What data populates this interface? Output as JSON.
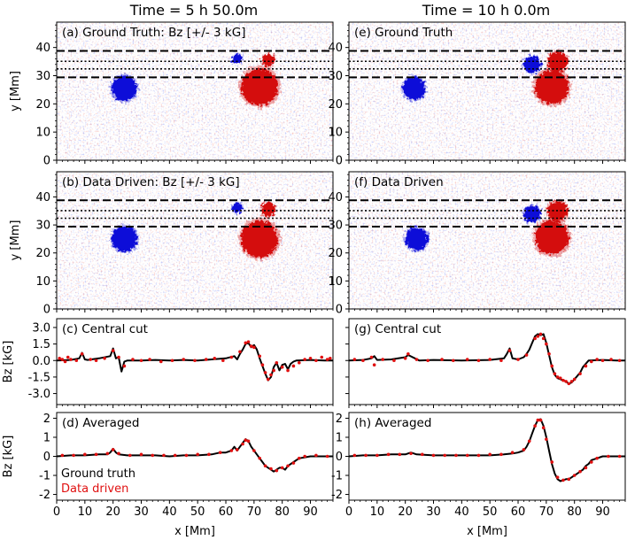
{
  "figure": {
    "left_title": "Time = 5 h 50.0m",
    "right_title": "Time = 10 h 0.0m"
  },
  "chart_data": [
    {
      "type": "heatmap",
      "panel": "a",
      "label": "(a) Ground Truth: Bz [+/- 3 kG]",
      "ylabel": "y [Mm]",
      "xlim": [
        0,
        98
      ],
      "ylim": [
        0,
        49
      ],
      "xticks": [
        0,
        10,
        20,
        30,
        40,
        50,
        60,
        70,
        80,
        90
      ],
      "yticks": [
        0,
        10,
        20,
        30,
        40
      ],
      "color_range_kG": [
        -3,
        3
      ],
      "dashed_lines_y": [
        29.4,
        38.8
      ],
      "dotted_lines_y": [
        32.4,
        35.1
      ],
      "spots": [
        {
          "polarity": "negative",
          "x": 24,
          "y": 25.5,
          "size": 4.5
        },
        {
          "polarity": "positive",
          "x": 72,
          "y": 26,
          "size": 6.5
        },
        {
          "polarity": "negative",
          "x": 64,
          "y": 36,
          "size": 1.8
        },
        {
          "polarity": "positive",
          "x": 75,
          "y": 35.5,
          "size": 2.2
        }
      ]
    },
    {
      "type": "heatmap",
      "panel": "e",
      "label": "(e) Ground Truth",
      "xlim": [
        0,
        98
      ],
      "ylim": [
        0,
        49
      ],
      "xticks": [
        0,
        10,
        20,
        30,
        40,
        50,
        60,
        70,
        80,
        90
      ],
      "yticks": [
        0,
        10,
        20,
        30,
        40
      ],
      "dashed_lines_y": [
        29.4,
        38.8
      ],
      "dotted_lines_y": [
        32.4,
        35.1
      ],
      "spots": [
        {
          "polarity": "negative",
          "x": 23,
          "y": 25.5,
          "size": 4.0
        },
        {
          "polarity": "positive",
          "x": 72,
          "y": 26,
          "size": 6.0
        },
        {
          "polarity": "negative",
          "x": 65,
          "y": 34,
          "size": 3.0
        },
        {
          "polarity": "positive",
          "x": 74,
          "y": 35,
          "size": 3.5
        }
      ]
    },
    {
      "type": "heatmap",
      "panel": "b",
      "label": "(b) Data Driven: Bz [+/- 3 kG]",
      "ylabel": "y [Mm]",
      "xlim": [
        0,
        98
      ],
      "ylim": [
        0,
        49
      ],
      "xticks": [
        0,
        10,
        20,
        30,
        40,
        50,
        60,
        70,
        80,
        90
      ],
      "yticks": [
        0,
        10,
        20,
        30,
        40
      ],
      "dashed_lines_y": [
        29.4,
        38.8
      ],
      "dotted_lines_y": [
        32.4,
        35.1
      ],
      "spots": [
        {
          "polarity": "negative",
          "x": 24,
          "y": 25,
          "size": 4.5
        },
        {
          "polarity": "positive",
          "x": 72,
          "y": 25,
          "size": 6.5
        },
        {
          "polarity": "negative",
          "x": 64,
          "y": 36,
          "size": 1.8
        },
        {
          "polarity": "positive",
          "x": 75,
          "y": 35.5,
          "size": 2.5
        }
      ]
    },
    {
      "type": "heatmap",
      "panel": "f",
      "label": "(f) Data Driven",
      "xlim": [
        0,
        98
      ],
      "ylim": [
        0,
        49
      ],
      "xticks": [
        0,
        10,
        20,
        30,
        40,
        50,
        60,
        70,
        80,
        90
      ],
      "yticks": [
        0,
        10,
        20,
        30,
        40
      ],
      "dashed_lines_y": [
        29.4,
        38.8
      ],
      "dotted_lines_y": [
        32.4,
        35.1
      ],
      "spots": [
        {
          "polarity": "negative",
          "x": 24,
          "y": 25,
          "size": 4.0
        },
        {
          "polarity": "positive",
          "x": 72,
          "y": 25.5,
          "size": 6.0
        },
        {
          "polarity": "negative",
          "x": 65,
          "y": 34,
          "size": 3.0
        },
        {
          "polarity": "positive",
          "x": 74,
          "y": 35,
          "size": 3.5
        }
      ]
    },
    {
      "type": "line",
      "panel": "c",
      "label": "(c) Central cut",
      "ylabel": "Bz [kG]",
      "xlim": [
        0,
        98
      ],
      "ylim": [
        -4.0,
        3.8
      ],
      "yticks": [
        3.0,
        1.5,
        0.0,
        -1.5,
        -3.0
      ],
      "xticks": [
        0,
        10,
        20,
        30,
        40,
        50,
        60,
        70,
        80,
        90
      ],
      "series": [
        {
          "name": "Ground truth",
          "color": "#000000",
          "style": "line",
          "x": [
            0,
            5,
            8,
            9,
            10,
            11,
            15,
            19,
            20,
            21,
            22,
            23,
            24,
            25,
            30,
            35,
            40,
            45,
            50,
            55,
            60,
            63,
            64,
            65,
            66,
            67,
            68,
            69,
            70,
            71,
            72,
            73,
            74,
            75,
            76,
            77,
            78,
            79,
            80,
            81,
            82,
            83,
            84,
            85,
            90,
            95,
            98
          ],
          "y": [
            0.0,
            0.05,
            0.2,
            0.7,
            0.1,
            0.05,
            0.2,
            0.4,
            1.1,
            0.2,
            0.3,
            -1.0,
            -0.1,
            0.0,
            0.0,
            0.05,
            0.0,
            0.05,
            0.0,
            0.1,
            0.2,
            0.4,
            0.1,
            0.6,
            1.0,
            1.5,
            1.6,
            1.2,
            1.4,
            1.0,
            0.2,
            -0.5,
            -1.2,
            -1.8,
            -1.5,
            -0.6,
            -0.2,
            -0.9,
            -0.4,
            -0.3,
            -0.8,
            -0.3,
            -0.1,
            0.0,
            0.05,
            0.0,
            0.0
          ]
        },
        {
          "name": "Data driven",
          "color": "#e01010",
          "style": "scatter",
          "x": [
            1,
            2,
            3,
            4,
            5,
            7,
            9,
            12,
            14,
            17,
            20,
            22,
            24,
            27,
            30,
            33,
            37,
            41,
            45,
            49,
            53,
            56,
            59,
            62,
            65,
            67,
            68,
            69,
            70,
            72,
            73,
            74,
            75,
            76,
            77,
            78,
            80,
            82,
            84,
            86,
            88,
            90,
            92,
            94,
            96,
            97
          ],
          "y": [
            0.2,
            0.1,
            -0.1,
            0.3,
            0.1,
            0.0,
            0.6,
            0.1,
            0.0,
            0.2,
            0.9,
            0.3,
            -0.5,
            0.1,
            0.0,
            0.1,
            -0.1,
            0.0,
            0.1,
            0.0,
            0.1,
            0.2,
            0.0,
            0.3,
            0.8,
            1.6,
            1.7,
            1.3,
            1.2,
            0.4,
            -0.4,
            -1.1,
            -1.7,
            -1.3,
            -0.9,
            -0.2,
            -0.6,
            -0.9,
            -0.5,
            -0.2,
            0.1,
            0.2,
            0.0,
            0.3,
            0.1,
            0.2
          ]
        }
      ]
    },
    {
      "type": "line",
      "panel": "g",
      "label": "(g) Central cut",
      "xlim": [
        0,
        98
      ],
      "ylim": [
        -4.0,
        3.8
      ],
      "yticks": [
        3.0,
        1.5,
        0.0,
        -1.5,
        -3.0
      ],
      "xticks": [
        0,
        10,
        20,
        30,
        40,
        50,
        60,
        70,
        80,
        90
      ],
      "series": [
        {
          "name": "Ground truth",
          "color": "#000000",
          "style": "line",
          "x": [
            0,
            5,
            8,
            9,
            10,
            15,
            20,
            21,
            25,
            30,
            40,
            50,
            55,
            56,
            57,
            58,
            60,
            62,
            63,
            64,
            65,
            66,
            67,
            68,
            69,
            70,
            71,
            72,
            73,
            74,
            75,
            76,
            77,
            78,
            79,
            80,
            81,
            82,
            83,
            84,
            85,
            90,
            95,
            98
          ],
          "y": [
            0.0,
            0.05,
            0.2,
            0.4,
            0.05,
            0.1,
            0.3,
            0.5,
            0.0,
            0.05,
            0.0,
            0.05,
            0.2,
            0.6,
            1.1,
            0.2,
            0.1,
            0.3,
            0.6,
            1.0,
            1.6,
            2.2,
            2.4,
            2.3,
            2.4,
            1.6,
            0.5,
            -0.6,
            -1.3,
            -1.6,
            -1.7,
            -1.8,
            -1.9,
            -2.1,
            -2.0,
            -1.7,
            -1.4,
            -1.1,
            -0.6,
            -0.3,
            0.0,
            0.05,
            0.0,
            0.0
          ]
        },
        {
          "name": "Data driven",
          "color": "#e01010",
          "style": "scatter",
          "x": [
            2,
            5,
            8,
            9,
            12,
            16,
            20,
            21,
            24,
            28,
            33,
            37,
            42,
            46,
            50,
            54,
            57,
            60,
            63,
            66,
            67,
            68,
            69,
            70,
            71,
            72,
            73,
            74,
            75,
            76,
            77,
            78,
            79,
            80,
            82,
            84,
            86,
            88,
            90,
            93,
            96
          ],
          "y": [
            0.1,
            0.0,
            0.3,
            -0.4,
            0.1,
            0.0,
            0.2,
            0.6,
            0.1,
            0.0,
            0.1,
            0.0,
            0.1,
            0.0,
            0.1,
            0.0,
            0.9,
            0.1,
            0.5,
            2.0,
            2.2,
            2.4,
            2.0,
            1.5,
            0.6,
            -0.5,
            -1.2,
            -1.5,
            -1.6,
            -1.8,
            -1.9,
            -2.1,
            -1.9,
            -1.7,
            -1.2,
            -0.5,
            -0.1,
            0.1,
            0.0,
            0.1,
            0.0
          ]
        }
      ]
    },
    {
      "type": "line",
      "panel": "d",
      "label": "(d) Averaged",
      "ylabel": "Bz [kG]",
      "xlabel": "x [Mm]",
      "xlim": [
        0,
        98
      ],
      "ylim": [
        -2.3,
        2.3
      ],
      "yticks": [
        2,
        1,
        0,
        -1,
        -2
      ],
      "xticks": [
        0,
        10,
        20,
        30,
        40,
        50,
        60,
        70,
        80,
        90
      ],
      "legend": {
        "entries": [
          "Ground truth",
          "Data driven"
        ],
        "position": "bottom-left"
      },
      "series": [
        {
          "name": "Ground truth",
          "color": "#000000",
          "style": "line",
          "x": [
            0,
            5,
            10,
            15,
            18,
            19,
            20,
            21,
            22,
            25,
            30,
            35,
            40,
            45,
            50,
            55,
            58,
            60,
            62,
            63,
            64,
            65,
            66,
            67,
            68,
            69,
            70,
            71,
            72,
            73,
            74,
            75,
            76,
            77,
            78,
            79,
            80,
            81,
            82,
            84,
            86,
            88,
            90,
            95,
            98
          ],
          "y": [
            0.0,
            0.05,
            0.05,
            0.1,
            0.1,
            0.2,
            0.4,
            0.2,
            0.1,
            0.05,
            0.05,
            0.05,
            0.0,
            0.05,
            0.05,
            0.1,
            0.2,
            0.2,
            0.3,
            0.5,
            0.3,
            0.5,
            0.7,
            0.9,
            0.8,
            0.5,
            0.3,
            0.1,
            -0.1,
            -0.3,
            -0.5,
            -0.6,
            -0.7,
            -0.8,
            -0.7,
            -0.6,
            -0.6,
            -0.7,
            -0.5,
            -0.3,
            -0.1,
            -0.05,
            0.0,
            0.0,
            0.0
          ]
        },
        {
          "name": "Data driven",
          "color": "#e01010",
          "style": "scatter",
          "x": [
            2,
            6,
            10,
            14,
            18,
            20,
            22,
            26,
            30,
            34,
            38,
            42,
            46,
            50,
            54,
            58,
            62,
            64,
            66,
            67,
            68,
            70,
            72,
            74,
            76,
            78,
            80,
            82,
            84,
            86,
            88,
            92,
            96
          ],
          "y": [
            0.05,
            0.05,
            0.1,
            0.1,
            0.15,
            0.35,
            0.15,
            0.05,
            0.1,
            0.05,
            0.05,
            0.05,
            0.05,
            0.1,
            0.1,
            0.2,
            0.3,
            0.35,
            0.65,
            0.85,
            0.8,
            0.3,
            -0.1,
            -0.5,
            -0.65,
            -0.75,
            -0.6,
            -0.5,
            -0.35,
            -0.1,
            0.0,
            0.05,
            0.0
          ]
        }
      ]
    },
    {
      "type": "line",
      "panel": "h",
      "label": "(h) Averaged",
      "xlabel": "x [Mm]",
      "xlim": [
        0,
        98
      ],
      "ylim": [
        -2.3,
        2.3
      ],
      "yticks": [
        2,
        1,
        0,
        -1,
        -2
      ],
      "xticks": [
        0,
        10,
        20,
        30,
        40,
        50,
        60,
        70,
        80,
        90
      ],
      "series": [
        {
          "name": "Ground truth",
          "color": "#000000",
          "style": "line",
          "x": [
            0,
            5,
            10,
            15,
            20,
            22,
            24,
            30,
            40,
            50,
            55,
            58,
            60,
            62,
            63,
            64,
            65,
            66,
            67,
            68,
            69,
            70,
            71,
            72,
            73,
            74,
            75,
            76,
            77,
            78,
            79,
            80,
            81,
            82,
            83,
            84,
            85,
            86,
            88,
            90,
            95,
            98
          ],
          "y": [
            0.0,
            0.05,
            0.05,
            0.1,
            0.1,
            0.2,
            0.1,
            0.05,
            0.05,
            0.05,
            0.1,
            0.15,
            0.2,
            0.3,
            0.5,
            0.8,
            1.2,
            1.6,
            1.9,
            1.95,
            1.6,
            1.0,
            0.3,
            -0.4,
            -0.9,
            -1.2,
            -1.3,
            -1.25,
            -1.2,
            -1.2,
            -1.1,
            -1.0,
            -0.9,
            -0.8,
            -0.7,
            -0.5,
            -0.4,
            -0.2,
            -0.1,
            0.0,
            0.0,
            0.0
          ]
        },
        {
          "name": "Data driven",
          "color": "#e01010",
          "style": "scatter",
          "x": [
            2,
            6,
            10,
            14,
            18,
            22,
            26,
            30,
            34,
            38,
            42,
            46,
            50,
            54,
            58,
            62,
            64,
            66,
            67,
            68,
            69,
            70,
            72,
            74,
            76,
            78,
            80,
            82,
            84,
            86,
            88,
            92,
            96
          ],
          "y": [
            0.05,
            0.05,
            0.05,
            0.1,
            0.1,
            0.15,
            0.1,
            0.05,
            0.05,
            0.05,
            0.05,
            0.05,
            0.1,
            0.1,
            0.2,
            0.35,
            0.8,
            1.6,
            1.9,
            1.9,
            1.5,
            0.9,
            -0.3,
            -1.1,
            -1.25,
            -1.2,
            -1.0,
            -0.8,
            -0.6,
            -0.3,
            -0.1,
            0.0,
            0.0
          ]
        }
      ]
    }
  ]
}
